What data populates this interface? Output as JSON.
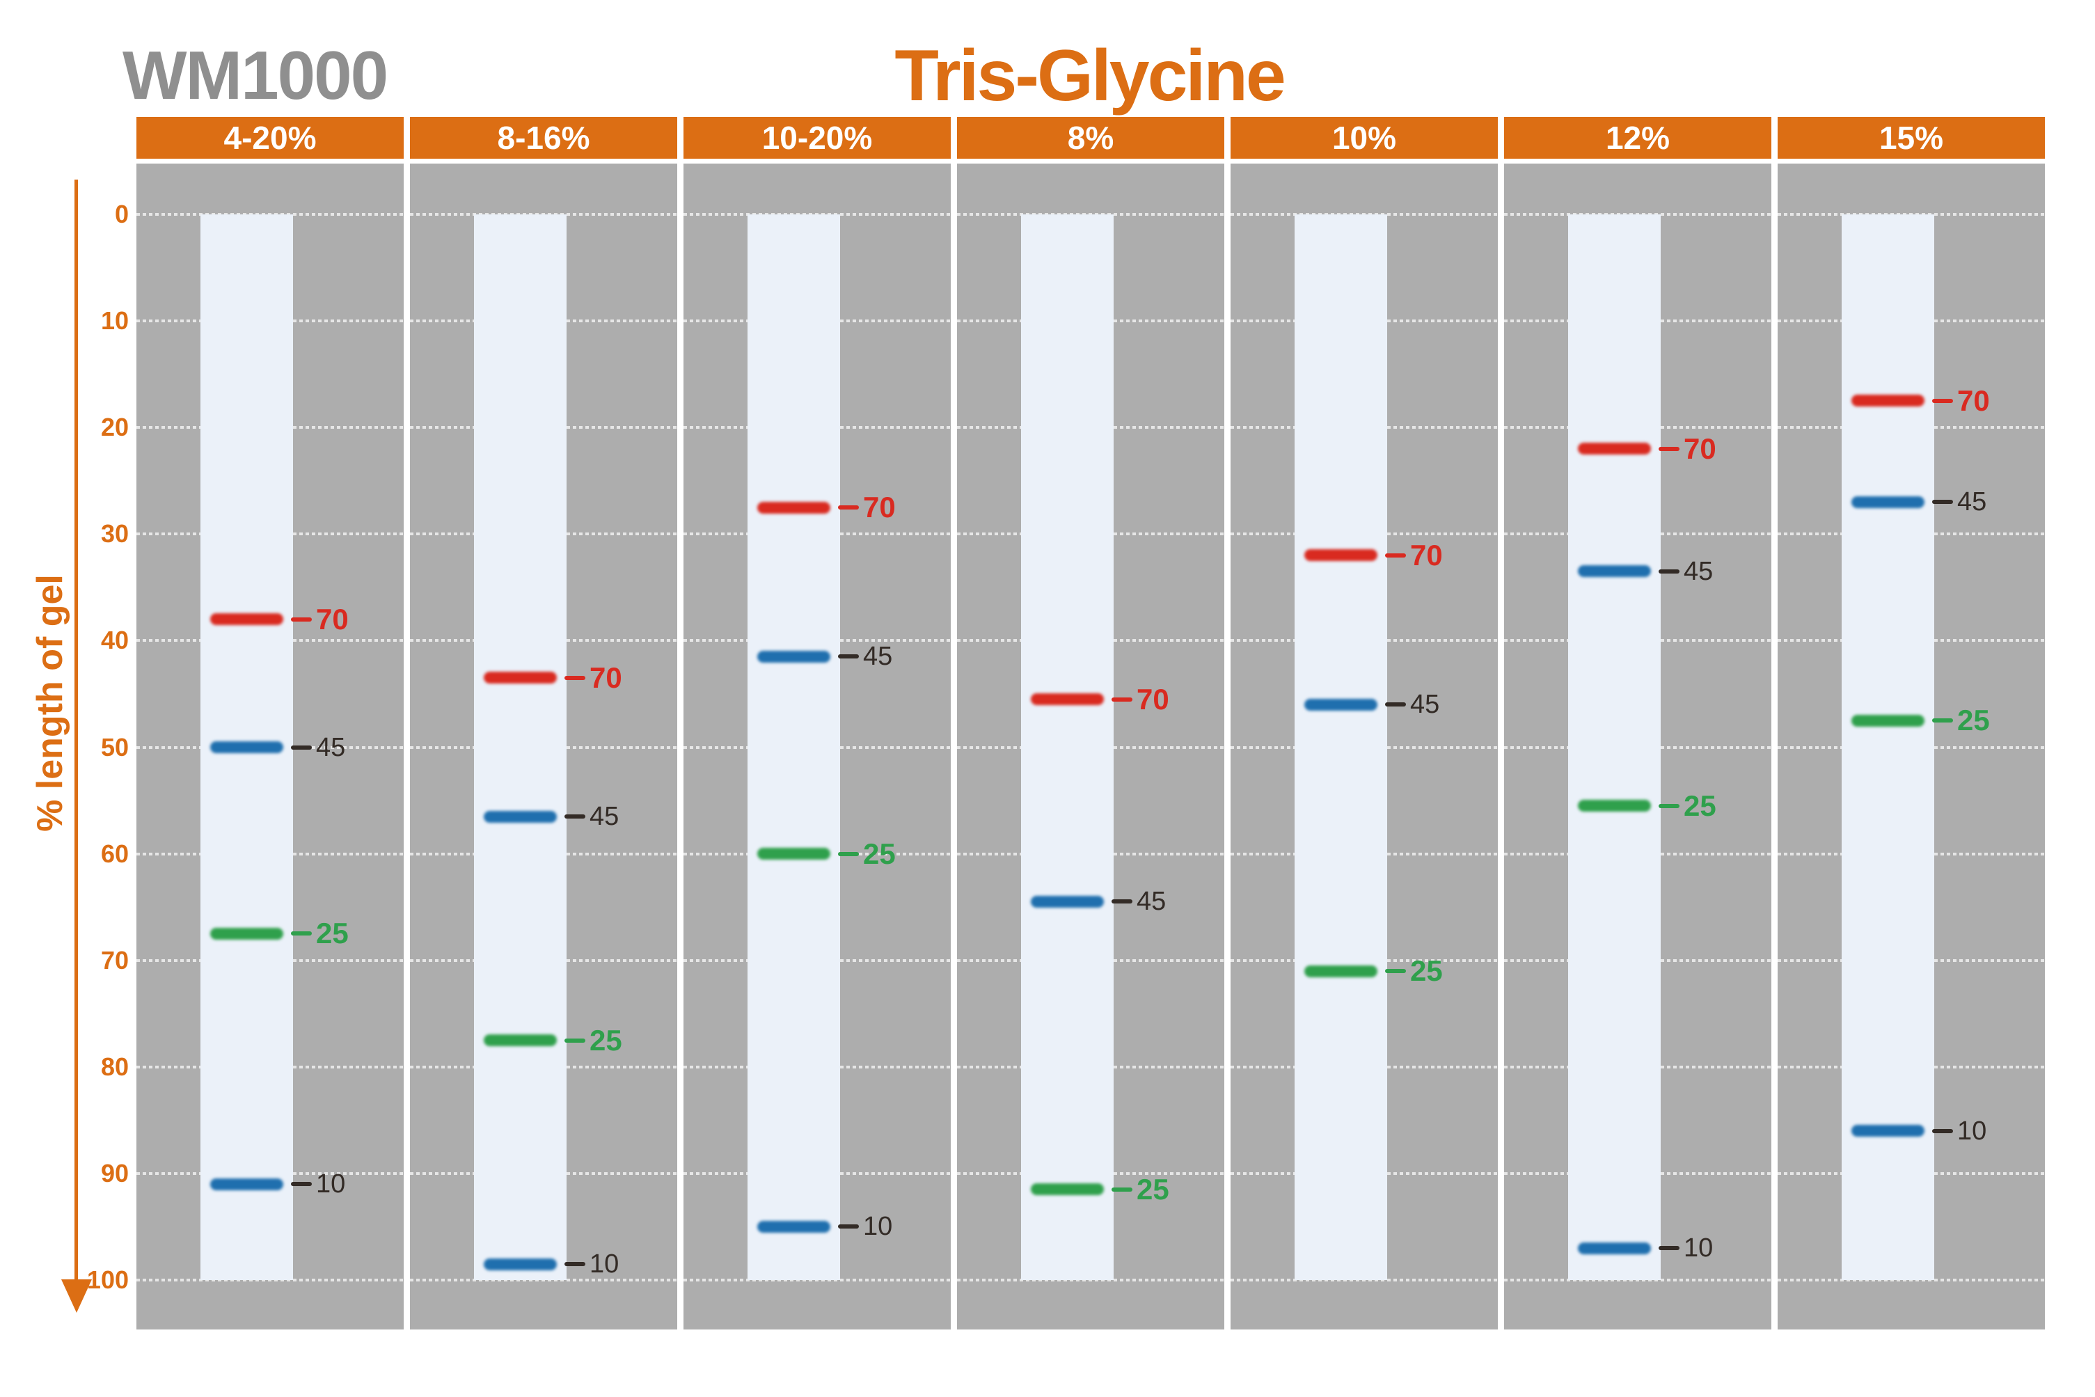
{
  "title": "WM1000",
  "subtitle": "Tris-Glycine",
  "colors": {
    "accent_orange": "#DC6E14",
    "title_gray": "#8F8F8F",
    "panel_gray": "#ADADAD",
    "lane_background": "#EBF1F9",
    "gridline_dots": "#E6E6E6",
    "band_red": "#D92A20",
    "band_blue": "#1F6FAE",
    "band_green": "#2FA04C",
    "label_dark": "#332B26",
    "header_text": "#FFFFFF"
  },
  "y_axis": {
    "label": "% length of gel",
    "ticks": [
      0,
      10,
      20,
      30,
      40,
      50,
      60,
      70,
      80,
      90,
      100
    ]
  },
  "chart_data": {
    "type": "scatter",
    "variant": "protein-ladder-gel-migration",
    "title": "WM1000",
    "subtitle": "Tris-Glycine",
    "ylabel": "% length of gel",
    "ylim": [
      0,
      100
    ],
    "y_direction": "downward",
    "grid": "horizontal dotted lines every 10%",
    "marker_sizes": [
      70,
      45,
      25,
      10
    ],
    "marker_colors": {
      "70": "red",
      "45": "blue",
      "25": "green",
      "10": "blue"
    },
    "lanes": [
      {
        "gel_percent": "4-20%",
        "bands": [
          {
            "size": "70",
            "pos": 38
          },
          {
            "size": "45",
            "pos": 50
          },
          {
            "size": "25",
            "pos": 67.5
          },
          {
            "size": "10",
            "pos": 91
          }
        ]
      },
      {
        "gel_percent": "8-16%",
        "bands": [
          {
            "size": "70",
            "pos": 43.5
          },
          {
            "size": "45",
            "pos": 56.5
          },
          {
            "size": "25",
            "pos": 77.5
          },
          {
            "size": "10",
            "pos": 98.5
          }
        ]
      },
      {
        "gel_percent": "10-20%",
        "bands": [
          {
            "size": "70",
            "pos": 27.5
          },
          {
            "size": "45",
            "pos": 41.5
          },
          {
            "size": "25",
            "pos": 60
          },
          {
            "size": "10",
            "pos": 95
          }
        ]
      },
      {
        "gel_percent": "8%",
        "bands": [
          {
            "size": "70",
            "pos": 45.5
          },
          {
            "size": "45",
            "pos": 64.5
          },
          {
            "size": "25",
            "pos": 91.5
          }
        ]
      },
      {
        "gel_percent": "10%",
        "bands": [
          {
            "size": "70",
            "pos": 32
          },
          {
            "size": "45",
            "pos": 46
          },
          {
            "size": "25",
            "pos": 71
          }
        ]
      },
      {
        "gel_percent": "12%",
        "bands": [
          {
            "size": "70",
            "pos": 22
          },
          {
            "size": "45",
            "pos": 33.5
          },
          {
            "size": "25",
            "pos": 55.5
          },
          {
            "size": "10",
            "pos": 97
          }
        ]
      },
      {
        "gel_percent": "15%",
        "bands": [
          {
            "size": "70",
            "pos": 17.5
          },
          {
            "size": "45",
            "pos": 27
          },
          {
            "size": "25",
            "pos": 47.5
          },
          {
            "size": "10",
            "pos": 86
          }
        ]
      }
    ]
  }
}
